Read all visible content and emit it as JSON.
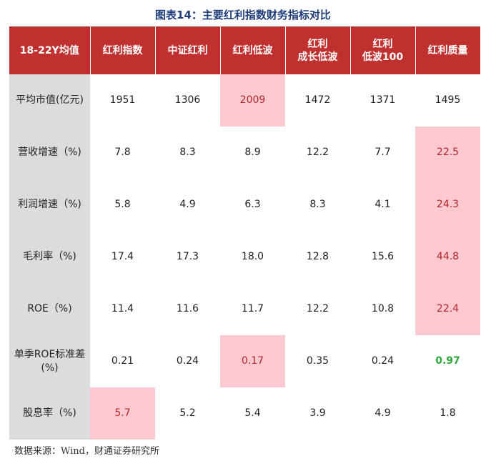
{
  "title": "图表14：主要红利指数财务指标对比",
  "headers": [
    "18-22Y均值",
    "红利指数",
    "中证红利",
    "红利低波",
    "红利\n成长低波",
    "红利\n低波100",
    "红利质量"
  ],
  "rows": [
    {
      "label": "平均市值(亿元)",
      "values": [
        "1951",
        "1306",
        "2009",
        "1472",
        "1371",
        "1495"
      ]
    },
    {
      "label": "营收增速（%)",
      "values": [
        "7.8",
        "8.3",
        "8.9",
        "12.2",
        "7.7",
        "22.5"
      ]
    },
    {
      "label": "利润增速（%)",
      "values": [
        "5.8",
        "4.9",
        "6.3",
        "8.3",
        "4.1",
        "24.3"
      ]
    },
    {
      "label": "毛利率（%)",
      "values": [
        "17.4",
        "17.3",
        "18.0",
        "12.8",
        "15.6",
        "44.8"
      ]
    },
    {
      "label": "ROE（%)",
      "values": [
        "11.4",
        "11.6",
        "11.7",
        "12.2",
        "10.8",
        "22.4"
      ]
    },
    {
      "label": "单季ROE标准差\n(%)",
      "values": [
        "0.21",
        "0.24",
        "0.17",
        "0.35",
        "0.24",
        "0.97"
      ]
    },
    {
      "label": "股息率（%)",
      "values": [
        "5.7",
        "5.2",
        "5.4",
        "3.9",
        "4.9",
        "1.8"
      ]
    }
  ],
  "source": "数据来源：Wind，财通证券研究所",
  "colors": {
    "header_bg": "#c0302f",
    "highlight_bg": "#fbc9cf",
    "highlight_text": "#b3262f",
    "green_text": "#2ea83a",
    "label_bg": "#dcdcdc",
    "title_color": "#1f3d7a"
  }
}
